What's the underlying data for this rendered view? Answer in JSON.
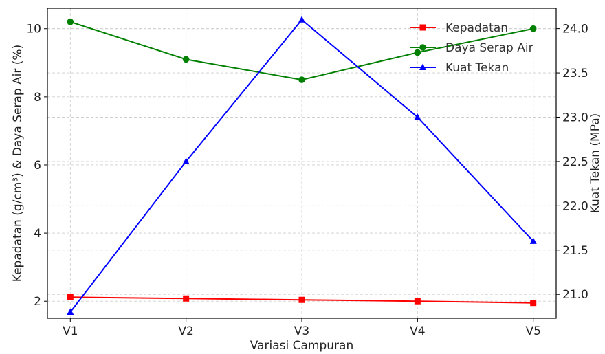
{
  "chart_data": {
    "type": "line",
    "categories": [
      "V1",
      "V2",
      "V3",
      "V4",
      "V5"
    ],
    "xlabel": "Variasi Campuran",
    "ylabel_left": "Kepadatan (g/cm³) & Daya Serap Air (%)",
    "ylabel_right": "Kuat Tekan (MPa)",
    "ylim_left": [
      1.5,
      10.6
    ],
    "yticks_left": [
      2,
      4,
      6,
      8,
      10
    ],
    "ylim_right": [
      20.73,
      24.23
    ],
    "yticks_right": [
      "21.0",
      "21.5",
      "22.0",
      "22.5",
      "23.0",
      "23.5",
      "24.0"
    ],
    "grid": true,
    "legend_position": "top-right",
    "series": [
      {
        "name": "Kepadatan",
        "axis": "left",
        "marker": "square",
        "color": "#ff0000",
        "values": [
          2.12,
          2.08,
          2.04,
          2.0,
          1.95
        ]
      },
      {
        "name": "Daya Serap Air",
        "axis": "left",
        "marker": "circle",
        "color": "#008000",
        "values": [
          10.2,
          9.1,
          8.5,
          9.3,
          10.0
        ]
      },
      {
        "name": "Kuat Tekan",
        "axis": "right",
        "marker": "triangle",
        "color": "#0000ff",
        "values": [
          20.8,
          22.5,
          24.1,
          23.0,
          21.6
        ]
      }
    ]
  }
}
